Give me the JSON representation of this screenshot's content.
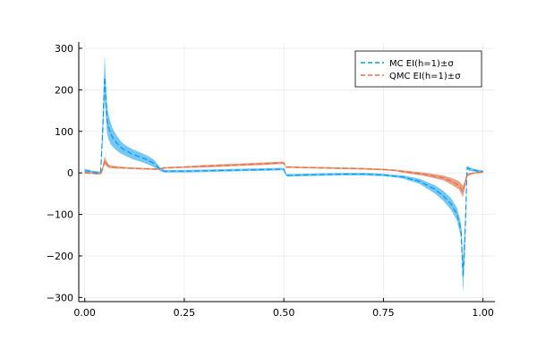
{
  "chart_data": {
    "type": "line",
    "title": "",
    "xlabel": "",
    "ylabel": "",
    "xlim": [
      -0.015,
      1.03
    ],
    "ylim": [
      -310,
      315
    ],
    "xticks": [
      0.0,
      0.25,
      0.5,
      0.75,
      1.0
    ],
    "xtick_labels": [
      "0.00",
      "0.25",
      "0.50",
      "0.75",
      "1.00"
    ],
    "yticks": [
      -300,
      -200,
      -100,
      0,
      100,
      200,
      300
    ],
    "ytick_labels": [
      "−300",
      "−200",
      "−100",
      "0",
      "100",
      "200",
      "300"
    ],
    "grid": true,
    "legend_position": "top-right",
    "series": [
      {
        "name": "MC EI(h=1)±σ",
        "color": "#009af9",
        "band_color": "#5bbef5",
        "line_style": "dashed",
        "x": [
          0.0,
          0.01,
          0.02,
          0.03,
          0.04,
          0.045,
          0.05,
          0.052,
          0.054,
          0.056,
          0.06,
          0.065,
          0.07,
          0.08,
          0.09,
          0.1,
          0.12,
          0.14,
          0.16,
          0.175,
          0.19,
          0.2,
          0.25,
          0.3,
          0.35,
          0.4,
          0.45,
          0.49,
          0.495,
          0.5,
          0.505,
          0.51,
          0.55,
          0.6,
          0.65,
          0.7,
          0.75,
          0.78,
          0.8,
          0.82,
          0.84,
          0.86,
          0.88,
          0.9,
          0.92,
          0.935,
          0.945,
          0.95,
          0.955,
          0.96,
          0.97,
          0.98,
          0.99,
          1.0
        ],
        "mean": [
          5,
          4,
          2,
          1,
          0,
          100,
          230,
          200,
          160,
          130,
          110,
          95,
          85,
          72,
          62,
          55,
          45,
          38,
          30,
          22,
          8,
          4,
          4,
          5,
          6,
          7,
          8,
          9,
          9,
          9,
          -4,
          -6,
          -5,
          -4,
          -3,
          -3,
          -5,
          -8,
          -10,
          -15,
          -20,
          -30,
          -40,
          -55,
          -75,
          -100,
          -140,
          -250,
          -150,
          12,
          8,
          6,
          4,
          3
        ],
        "sigma": [
          5,
          4,
          3,
          3,
          3,
          25,
          55,
          45,
          40,
          35,
          30,
          26,
          22,
          18,
          15,
          13,
          12,
          11,
          10,
          9,
          4,
          3,
          3,
          3,
          3,
          3,
          3,
          3,
          3,
          3,
          3,
          3,
          3,
          3,
          3,
          3,
          3,
          3,
          4,
          5,
          6,
          8,
          10,
          12,
          14,
          15,
          18,
          40,
          30,
          5,
          4,
          3,
          3,
          3
        ]
      },
      {
        "name": "QMC EI(h=1)±σ",
        "color": "#e26f46",
        "band_color": "#e8906e",
        "line_style": "dashed",
        "x": [
          0.0,
          0.02,
          0.03,
          0.04,
          0.045,
          0.05,
          0.055,
          0.06,
          0.07,
          0.08,
          0.1,
          0.12,
          0.15,
          0.18,
          0.19,
          0.2,
          0.25,
          0.3,
          0.35,
          0.4,
          0.45,
          0.49,
          0.5,
          0.505,
          0.51,
          0.55,
          0.6,
          0.65,
          0.7,
          0.75,
          0.78,
          0.8,
          0.85,
          0.9,
          0.92,
          0.94,
          0.95,
          0.96,
          0.97,
          0.98,
          0.99,
          1.0
        ],
        "mean": [
          0,
          -1,
          -2,
          -2,
          10,
          30,
          22,
          16,
          14,
          13,
          12,
          11,
          10,
          9,
          10,
          12,
          14,
          16,
          18,
          20,
          22,
          24,
          24,
          14,
          14,
          13,
          12,
          11,
          10,
          8,
          6,
          3,
          -3,
          -12,
          -20,
          -30,
          -45,
          -5,
          -2,
          0,
          1,
          2
        ],
        "sigma": [
          2,
          2,
          2,
          2,
          5,
          10,
          6,
          4,
          3,
          3,
          2,
          2,
          2,
          2,
          2,
          2,
          2,
          3,
          3,
          3,
          3,
          3,
          3,
          2,
          2,
          2,
          2,
          2,
          2,
          2,
          2,
          3,
          4,
          6,
          8,
          10,
          14,
          4,
          2,
          2,
          2,
          2
        ]
      }
    ]
  }
}
